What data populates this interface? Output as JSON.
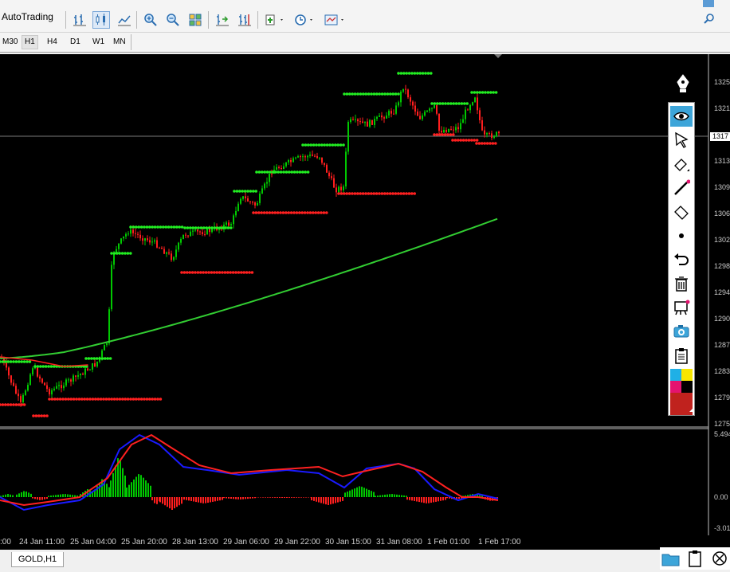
{
  "toolbar": {
    "autotrading_label": "AutoTrading"
  },
  "timeframes": [
    "M30",
    "H1",
    "H4",
    "D1",
    "W1",
    "MN"
  ],
  "active_timeframe": "H1",
  "chart": {
    "symbol_tab": "GOLD,H1",
    "current_price_label": "1317",
    "price_axis_labels": [
      "1325",
      "1321",
      "1317",
      "1313",
      "1309",
      "1306",
      "1302",
      "1298",
      "1294",
      "1290",
      "1287",
      "1283",
      "1279",
      "1275"
    ],
    "indicator_axis_labels": [
      "5.494",
      "0.00",
      "-3.01"
    ],
    "time_labels": [
      ":00",
      "24 Jan 11:00",
      "25 Jan 04:00",
      "25 Jan 20:00",
      "28 Jan 13:00",
      "29 Jan 06:00",
      "29 Jan 22:00",
      "30 Jan 15:00",
      "31 Jan 08:00",
      "1 Feb 01:00",
      "1 Feb 17:00"
    ],
    "colors": {
      "background": "#000000",
      "bull_candle": "#00c800",
      "bear_candle": "#ff1e1e",
      "support_dots": "#ff2020",
      "resistance_dots": "#22ee22",
      "moving_average": "#32cd32",
      "macd_line": "#1a1aff",
      "signal_line": "#ff2020"
    }
  },
  "tools_panel": {
    "items": [
      "pen-icon",
      "eye-icon",
      "cursor-icon",
      "eraser-icon",
      "line-icon",
      "eraser-all-icon",
      "dot-icon",
      "undo-icon",
      "trash-icon",
      "screenshot-board-icon",
      "camera-icon",
      "clipboard-icon",
      "color-palette-icon",
      "color-swatch-icon"
    ]
  }
}
